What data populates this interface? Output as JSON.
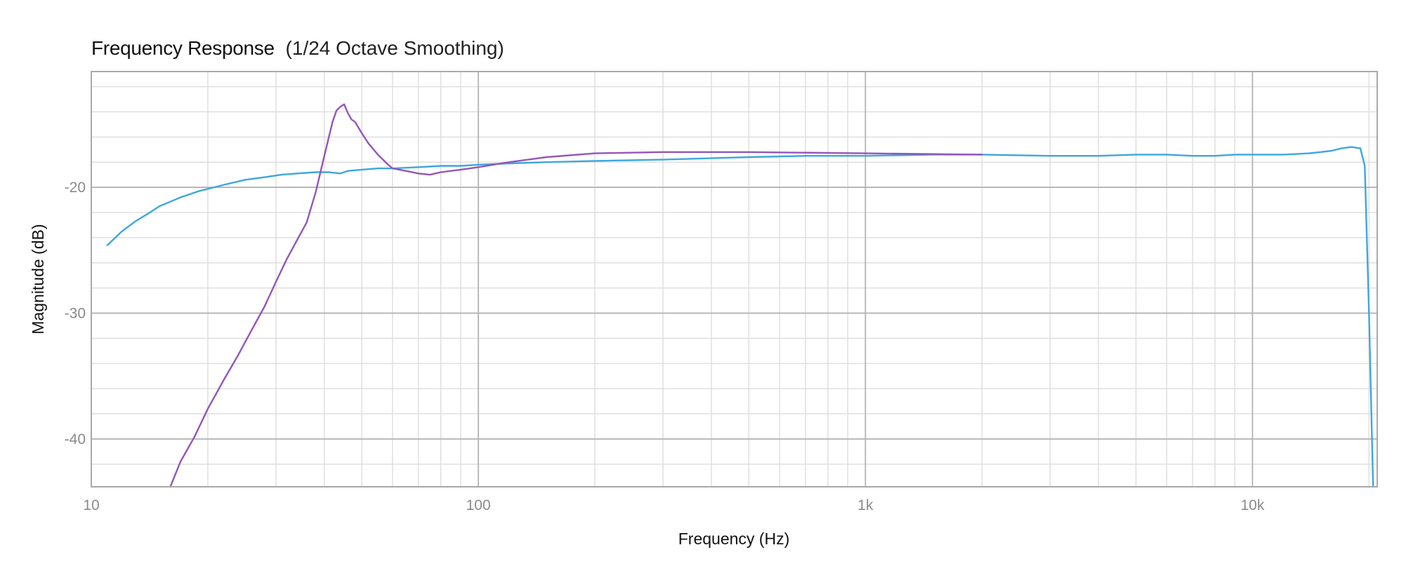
{
  "chart_data": {
    "type": "line",
    "title": "Frequency Response",
    "subtitle": "(1/24 Octave Smoothing)",
    "xlabel": "Frequency (Hz)",
    "ylabel": "Magnitude (dB)",
    "xscale": "log",
    "xlim": [
      10,
      21000
    ],
    "ylim": [
      -43.8,
      -10.8
    ],
    "x_ticks": [
      {
        "value": 10,
        "label": "10"
      },
      {
        "value": 100,
        "label": "100"
      },
      {
        "value": 1000,
        "label": "1k"
      },
      {
        "value": 10000,
        "label": "10k"
      }
    ],
    "y_ticks": [
      {
        "value": -20,
        "label": "-20"
      },
      {
        "value": -30,
        "label": "-30"
      },
      {
        "value": -40,
        "label": "-40"
      }
    ],
    "grid": true,
    "legend": "none",
    "series": [
      {
        "name": "series-blue",
        "color": "#3ea6de",
        "x": [
          11,
          12,
          13,
          14,
          15,
          17,
          19,
          22,
          25,
          28,
          31,
          34,
          38,
          41,
          44,
          46,
          50,
          55,
          60,
          70,
          80,
          90,
          100,
          120,
          150,
          200,
          300,
          500,
          700,
          1000,
          1500,
          2000,
          3000,
          4000,
          5000,
          6000,
          7000,
          8000,
          9000,
          10000,
          12000,
          14000,
          15000,
          16000,
          17000,
          18000,
          19000,
          19500,
          20000,
          20500
        ],
        "y": [
          -24.6,
          -23.5,
          -22.7,
          -22.1,
          -21.5,
          -20.8,
          -20.3,
          -19.8,
          -19.4,
          -19.2,
          -19.0,
          -18.9,
          -18.8,
          -18.8,
          -18.9,
          -18.7,
          -18.6,
          -18.5,
          -18.5,
          -18.4,
          -18.3,
          -18.3,
          -18.2,
          -18.1,
          -18.0,
          -17.9,
          -17.8,
          -17.6,
          -17.5,
          -17.5,
          -17.4,
          -17.4,
          -17.5,
          -17.5,
          -17.4,
          -17.4,
          -17.5,
          -17.5,
          -17.4,
          -17.4,
          -17.4,
          -17.3,
          -17.2,
          -17.1,
          -16.9,
          -16.8,
          -16.9,
          -18.3,
          -30.0,
          -43.8
        ]
      },
      {
        "name": "series-purple",
        "color": "#9257b8",
        "x": [
          16,
          17,
          18.5,
          20,
          22,
          24,
          26,
          28,
          30,
          32,
          34,
          36,
          38,
          40,
          42,
          43,
          44,
          45,
          46,
          47,
          48,
          50,
          52,
          55,
          58,
          60,
          65,
          70,
          75,
          80,
          90,
          100,
          120,
          150,
          200,
          300,
          500,
          1000,
          2000
        ],
        "y": [
          -43.8,
          -41.8,
          -39.8,
          -37.6,
          -35.3,
          -33.3,
          -31.3,
          -29.5,
          -27.5,
          -25.7,
          -24.2,
          -22.8,
          -20.4,
          -17.5,
          -14.8,
          -13.9,
          -13.6,
          -13.4,
          -14.1,
          -14.6,
          -14.8,
          -15.7,
          -16.5,
          -17.4,
          -18.1,
          -18.5,
          -18.7,
          -18.9,
          -19.0,
          -18.8,
          -18.6,
          -18.4,
          -18.0,
          -17.6,
          -17.3,
          -17.2,
          -17.2,
          -17.3,
          -17.4
        ]
      }
    ]
  }
}
